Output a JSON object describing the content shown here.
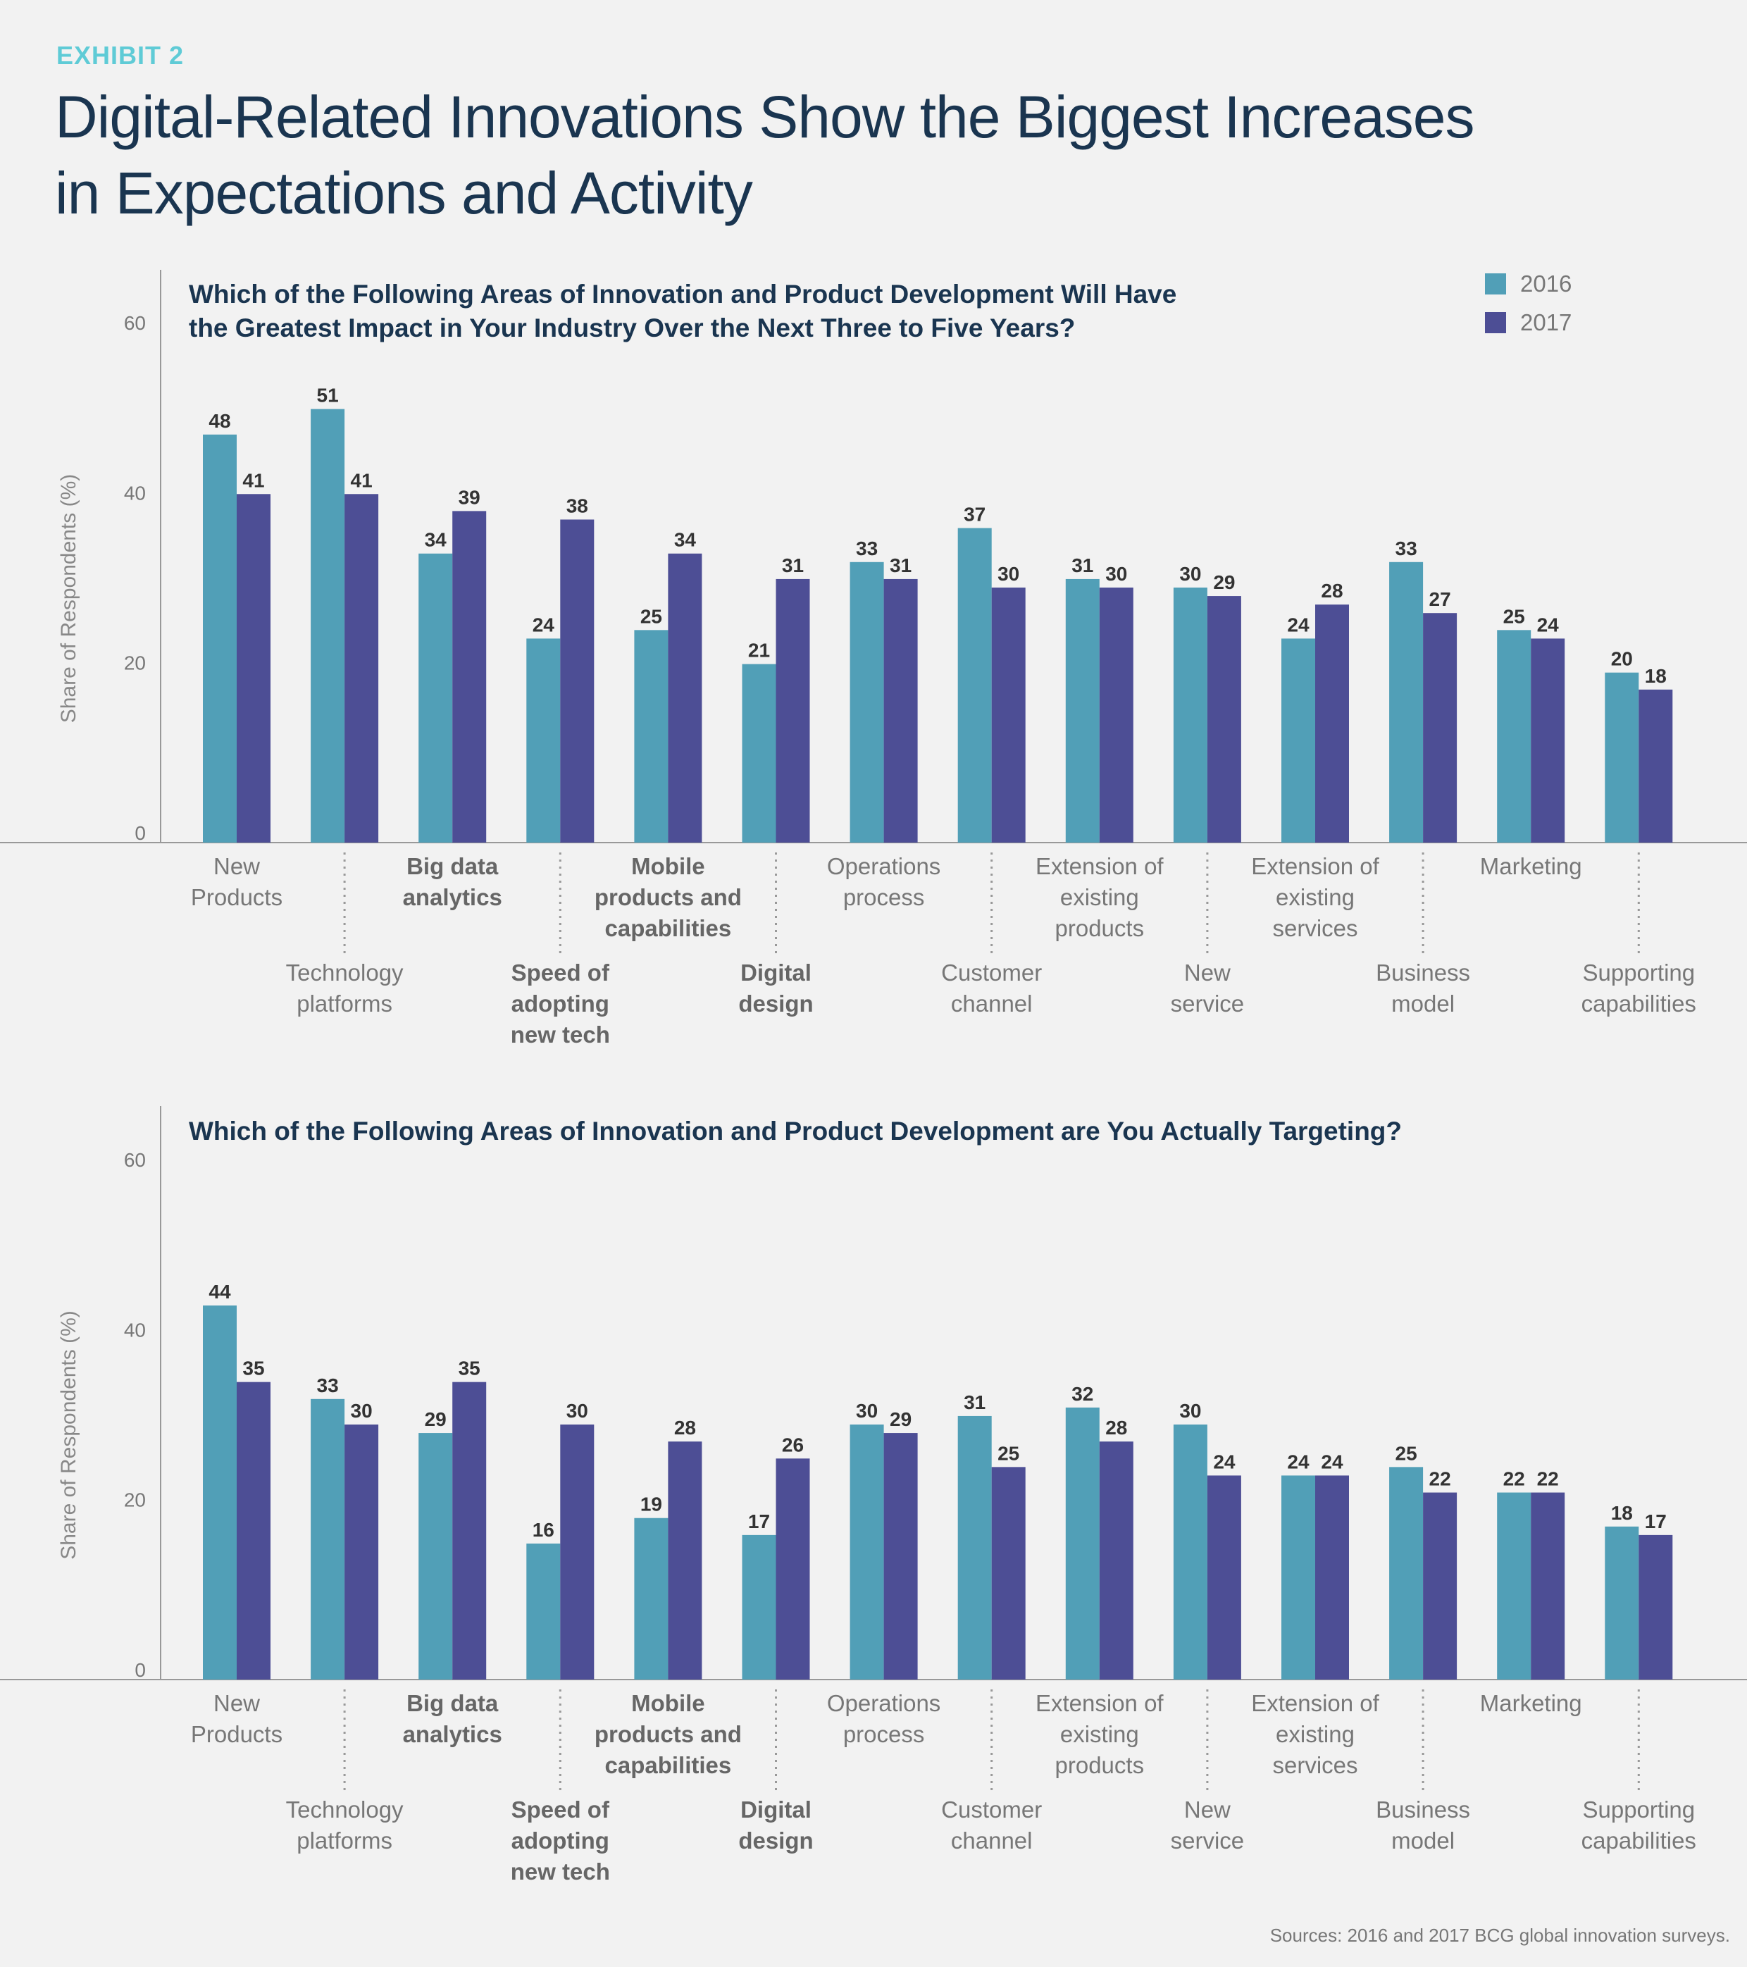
{
  "header": {
    "exhibit": "EXHIBIT 2",
    "title_lines": [
      "Digital-Related Innovations Show the Biggest Increases",
      "in Expectations and Activity"
    ]
  },
  "source": "Sources: 2016 and 2017 BCG global innovation surveys.",
  "colors": {
    "2016": "#519fb7",
    "2017": "#4d4e95",
    "title": "#1a3550",
    "exhibit": "#5fcbd6"
  },
  "legend": [
    {
      "name": "2016",
      "color": "#519fb7"
    },
    {
      "name": "2017",
      "color": "#4d4e95"
    }
  ],
  "categories": [
    {
      "lines": [
        "New",
        "Products"
      ],
      "bold": false
    },
    {
      "lines": [
        "Technology",
        "platforms"
      ],
      "bold": false
    },
    {
      "lines": [
        "Big data",
        "analytics"
      ],
      "bold": true
    },
    {
      "lines": [
        "Speed of",
        "adopting",
        "new tech"
      ],
      "bold": true
    },
    {
      "lines": [
        "Mobile",
        "products and",
        "capabilities"
      ],
      "bold": true
    },
    {
      "lines": [
        "Digital",
        "design"
      ],
      "bold": true
    },
    {
      "lines": [
        "Operations",
        "process"
      ],
      "bold": false
    },
    {
      "lines": [
        "Customer",
        "channel"
      ],
      "bold": false
    },
    {
      "lines": [
        "Extension of",
        "existing",
        "products"
      ],
      "bold": false
    },
    {
      "lines": [
        "New",
        "service"
      ],
      "bold": false
    },
    {
      "lines": [
        "Extension of",
        "existing",
        "services"
      ],
      "bold": false
    },
    {
      "lines": [
        "Business",
        "model"
      ],
      "bold": false
    },
    {
      "lines": [
        "Marketing"
      ],
      "bold": false
    },
    {
      "lines": [
        "Supporting",
        "capabilities"
      ],
      "bold": false
    }
  ],
  "chart_data": [
    {
      "type": "bar",
      "title_lines": [
        "Which of the Following Areas of Innovation and Product Development Will Have",
        "the Greatest Impact in Your Industry Over the Next Three to Five Years?"
      ],
      "ylabel": "Share of Respondents (%)",
      "ylim": [
        0,
        60
      ],
      "yticks": [
        0,
        20,
        40,
        60
      ],
      "legend_position": "top-right",
      "series": [
        {
          "name": "2016",
          "values": [
            48,
            51,
            34,
            24,
            25,
            21,
            33,
            37,
            31,
            30,
            24,
            33,
            25,
            20
          ]
        },
        {
          "name": "2017",
          "values": [
            41,
            41,
            39,
            38,
            34,
            31,
            31,
            30,
            30,
            29,
            28,
            27,
            24,
            18
          ]
        }
      ]
    },
    {
      "type": "bar",
      "title_lines": [
        "Which of the Following Areas of Innovation and Product Development are You Actually Targeting?"
      ],
      "ylabel": "Share of Respondents (%)",
      "ylim": [
        0,
        60
      ],
      "yticks": [
        0,
        20,
        40,
        60
      ],
      "series": [
        {
          "name": "2016",
          "values": [
            44,
            33,
            29,
            16,
            19,
            17,
            30,
            31,
            32,
            30,
            24,
            25,
            22,
            18
          ]
        },
        {
          "name": "2017",
          "values": [
            35,
            30,
            35,
            30,
            28,
            26,
            29,
            25,
            28,
            24,
            24,
            22,
            22,
            17
          ]
        }
      ]
    }
  ]
}
